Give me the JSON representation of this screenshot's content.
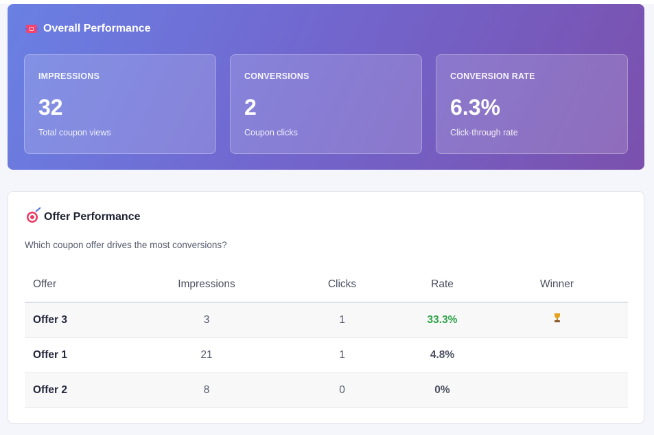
{
  "overall": {
    "title": "Overall Performance",
    "icon": "ticket-icon",
    "stats": [
      {
        "label": "IMPRESSIONS",
        "value": "32",
        "sub": "Total coupon views"
      },
      {
        "label": "CONVERSIONS",
        "value": "2",
        "sub": "Coupon clicks"
      },
      {
        "label": "CONVERSION RATE",
        "value": "6.3%",
        "sub": "Click-through rate"
      }
    ]
  },
  "offers": {
    "title": "Offer Performance",
    "icon": "target-icon",
    "description": "Which coupon offer drives the most conversions?",
    "columns": [
      "Offer",
      "Impressions",
      "Clicks",
      "Rate",
      "Winner"
    ],
    "rows": [
      {
        "offer": "Offer 3",
        "impressions": "3",
        "clicks": "1",
        "rate": "33.3%",
        "winner": true
      },
      {
        "offer": "Offer 1",
        "impressions": "21",
        "clicks": "1",
        "rate": "4.8%",
        "winner": false
      },
      {
        "offer": "Offer 2",
        "impressions": "8",
        "clicks": "0",
        "rate": "0%",
        "winner": false
      }
    ],
    "winner_icon": "trophy-icon"
  },
  "colors": {
    "gradient_start": "#6a80e3",
    "gradient_end": "#7b50ad",
    "best_rate": "#2fa34a"
  }
}
